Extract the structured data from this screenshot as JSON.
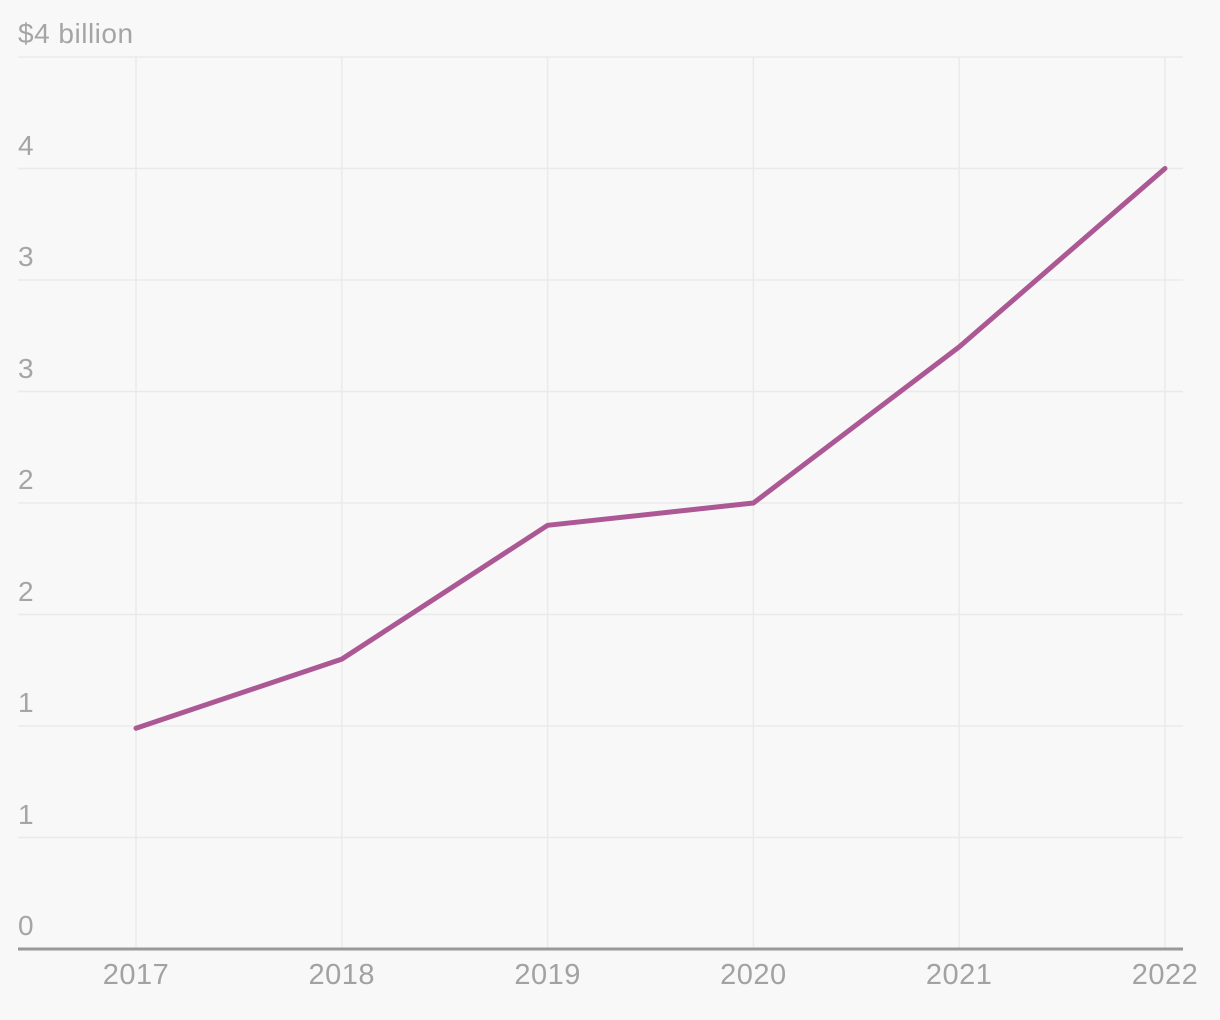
{
  "chart_data": {
    "type": "line",
    "title": "$4 billion",
    "unit": "$ billion",
    "x_tick_labels": [
      "2017",
      "2018",
      "2019",
      "2020",
      "2021",
      "2022"
    ],
    "x": [
      2017,
      2018,
      2019,
      2020,
      2021,
      2022
    ],
    "values": [
      0.99,
      1.3,
      1.9,
      2.0,
      2.7,
      3.5
    ],
    "y_ticks": [
      {
        "value": 0,
        "label": "0"
      },
      {
        "value": 0.5,
        "label": "1"
      },
      {
        "value": 1,
        "label": "1"
      },
      {
        "value": 1.5,
        "label": "2"
      },
      {
        "value": 2,
        "label": "2"
      },
      {
        "value": 2.5,
        "label": "3"
      },
      {
        "value": 3,
        "label": "3"
      },
      {
        "value": 3.5,
        "label": "4"
      },
      {
        "value": 4,
        "label": "$4 billion"
      }
    ],
    "ylim": [
      0,
      4
    ],
    "xlabel": "",
    "ylabel": "",
    "grid": true,
    "legend": false,
    "colors": {
      "line": "#ac5894",
      "grid": "#eaeaea",
      "axis": "#999999",
      "tick_text": "#a5a5a5",
      "background": "#f8f8f8"
    }
  }
}
